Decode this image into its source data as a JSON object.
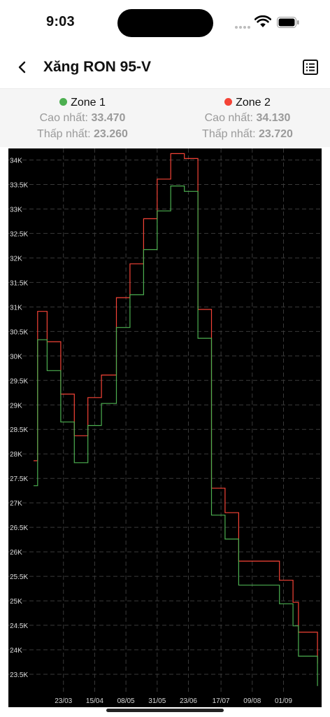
{
  "status": {
    "time": "9:03"
  },
  "nav": {
    "title": "Xăng RON 95-V"
  },
  "zones": [
    {
      "name": "Zone 1",
      "color": "#4caf50",
      "high_label": "Cao nhất:",
      "high": "33.470",
      "low_label": "Thấp nhất:",
      "low": "23.260"
    },
    {
      "name": "Zone 2",
      "color": "#f44336",
      "high_label": "Cao nhất:",
      "high": "34.130",
      "low_label": "Thấp nhất:",
      "low": "23.720"
    }
  ],
  "chart_data": {
    "type": "line",
    "step": true,
    "background": "#000000",
    "grid": true,
    "ylim": [
      23200,
      34150
    ],
    "y_ticks": [
      23500,
      24000,
      24500,
      25000,
      25500,
      26000,
      26500,
      27000,
      27500,
      28000,
      28500,
      29000,
      29500,
      30000,
      30500,
      31000,
      31500,
      32000,
      32500,
      33000,
      33500,
      34000
    ],
    "y_tick_labels": [
      "23.5K",
      "24K",
      "24.5K",
      "25K",
      "25.5K",
      "26K",
      "26.5K",
      "27K",
      "27.5K",
      "28K",
      "28.5K",
      "29K",
      "29.5K",
      "30K",
      "30.5K",
      "31K",
      "31.5K",
      "32K",
      "32.5K",
      "33K",
      "33.5K",
      "34K"
    ],
    "x_start": "2023-03-01",
    "x_end": "2023-09-27",
    "x_ticks": [
      "2023-03-23",
      "2023-04-15",
      "2023-05-08",
      "2023-05-31",
      "2023-06-23",
      "2023-07-17",
      "2023-08-09",
      "2023-09-01"
    ],
    "x_tick_labels": [
      "23/03",
      "15/04",
      "08/05",
      "31/05",
      "23/06",
      "17/07",
      "09/08",
      "01/09"
    ],
    "series": [
      {
        "name": "Zone 1",
        "color": "#4caf50",
        "x": [
          "2023-03-01",
          "2023-03-04",
          "2023-03-11",
          "2023-03-21",
          "2023-03-31",
          "2023-04-10",
          "2023-04-20",
          "2023-05-01",
          "2023-05-11",
          "2023-05-21",
          "2023-05-31",
          "2023-06-10",
          "2023-06-20",
          "2023-06-30",
          "2023-07-10",
          "2023-07-20",
          "2023-07-30",
          "2023-08-09",
          "2023-08-19",
          "2023-08-29",
          "2023-09-05",
          "2023-09-08",
          "2023-09-12",
          "2023-09-13",
          "2023-09-15",
          "2023-09-19",
          "2023-09-23",
          "2023-09-26"
        ],
        "values": [
          27350,
          30330,
          29700,
          28650,
          27820,
          28580,
          29030,
          30580,
          31250,
          32170,
          32960,
          33470,
          33360,
          30360,
          26750,
          26260,
          25320,
          25320,
          25320,
          24940,
          24940,
          24490,
          23870,
          23870,
          23870,
          23870,
          23870,
          23260
        ]
      },
      {
        "name": "Zone 2",
        "color": "#f44336",
        "x": [
          "2023-03-01",
          "2023-03-04",
          "2023-03-11",
          "2023-03-21",
          "2023-03-31",
          "2023-04-10",
          "2023-04-20",
          "2023-05-01",
          "2023-05-11",
          "2023-05-21",
          "2023-05-31",
          "2023-06-10",
          "2023-06-20",
          "2023-06-30",
          "2023-07-10",
          "2023-07-20",
          "2023-07-30",
          "2023-08-09",
          "2023-08-19",
          "2023-08-29",
          "2023-09-05",
          "2023-09-08",
          "2023-09-12",
          "2023-09-13",
          "2023-09-15",
          "2023-09-19",
          "2023-09-23",
          "2023-09-26"
        ],
        "values": [
          27860,
          30910,
          30290,
          29220,
          28370,
          29150,
          29610,
          31190,
          31880,
          32800,
          33610,
          34130,
          34030,
          30950,
          27300,
          26800,
          25810,
          25810,
          25810,
          25420,
          25420,
          24970,
          24360,
          24360,
          24360,
          24360,
          24360,
          23720
        ]
      }
    ]
  }
}
